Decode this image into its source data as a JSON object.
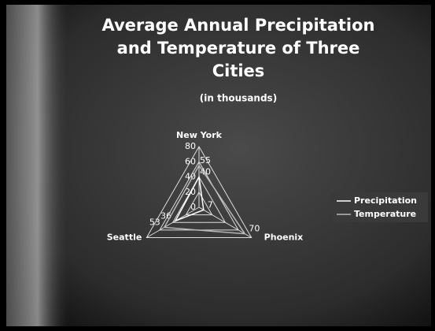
{
  "chart_data": {
    "type": "radar",
    "title": [
      "Average Annual Precipitation",
      "and Temperature of Three",
      "Cities"
    ],
    "subtitle": "(in thousands)",
    "categories": [
      "New York",
      "Phoenix",
      "Seattle"
    ],
    "series": [
      {
        "name": "Precipitation",
        "color": "#ffffff",
        "values": [
          40,
          7,
          36
        ]
      },
      {
        "name": "Temperature",
        "color": "#b8b8b8",
        "values": [
          55,
          70,
          53
        ]
      }
    ],
    "rlim": [
      0,
      80
    ],
    "rticks": [
      0,
      20,
      40,
      60,
      80
    ],
    "grid": true
  }
}
